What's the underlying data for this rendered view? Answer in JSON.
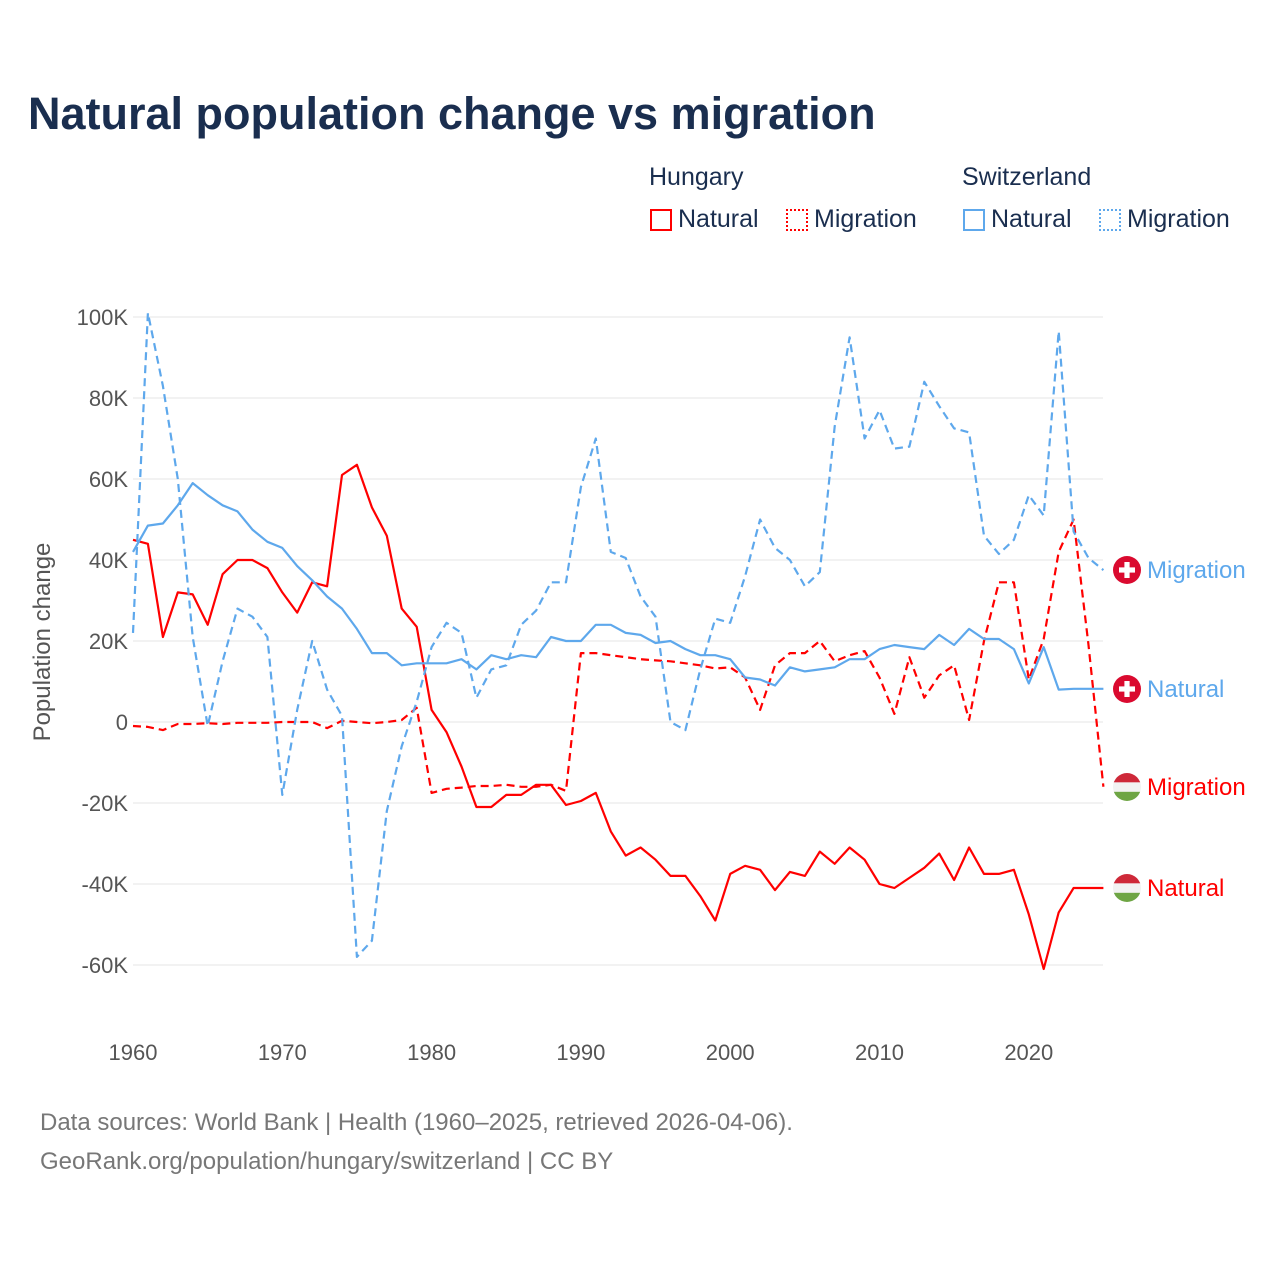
{
  "chart_data": {
    "type": "line",
    "title": "Natural population change vs migration",
    "xlabel": "",
    "ylabel": "Population change",
    "xlim": [
      1960,
      2025
    ],
    "ylim": [
      -70000,
      105000
    ],
    "x_ticks": [
      1960,
      1970,
      1980,
      1990,
      2000,
      2010,
      2020
    ],
    "x_tick_labels": [
      "1960",
      "1970",
      "1980",
      "1990",
      "2000",
      "2010",
      "2020"
    ],
    "y_ticks": [
      100000,
      80000,
      60000,
      40000,
      20000,
      0,
      -20000,
      -40000,
      -60000
    ],
    "y_tick_labels": [
      "100K",
      "80K",
      "60K",
      "40K",
      "20K",
      "0",
      "-20K",
      "-40K",
      "-60K"
    ],
    "grid": true,
    "legend_placement": "top-right",
    "legend_groups": [
      "Hungary",
      "Switzerland"
    ],
    "x_start": 1960,
    "series": [
      {
        "name": "Hungary Natural",
        "country": "Hungary",
        "label": "Natural",
        "color": "#ff0000",
        "dashed": false,
        "flag": "hungary-flag-icon",
        "values_k": [
          45,
          44,
          21,
          32,
          31.5,
          24,
          36.5,
          40,
          40,
          38,
          32,
          27,
          34.5,
          33.5,
          61,
          63.5,
          53,
          46,
          28,
          23.5,
          3,
          -2.5,
          -11,
          -21,
          -21,
          -18,
          -18,
          -15.5,
          -15.5,
          -20.5,
          -19.5,
          -17.5,
          -27,
          -33,
          -31,
          -34,
          -38,
          -38,
          -43,
          -49,
          -37.5,
          -35.5,
          -36.5,
          -41.5,
          -37,
          -38,
          -32,
          -35,
          -31,
          -34,
          -40,
          -41,
          -38.5,
          -36,
          -32.5,
          -39,
          -31,
          -37.5,
          -37.5,
          -36.5,
          -47.5,
          -61,
          -47,
          -41,
          -41,
          -41
        ]
      },
      {
        "name": "Hungary Migration",
        "country": "Hungary",
        "label": "Migration",
        "color": "#ff0000",
        "dashed": true,
        "flag": "hungary-flag-icon",
        "values_k": [
          -1,
          -1.2,
          -2,
          -0.5,
          -0.5,
          -0.3,
          -0.5,
          -0.2,
          -0.2,
          -0.2,
          0,
          0,
          0,
          -1.5,
          0.3,
          0,
          -0.3,
          0,
          0.5,
          3.5,
          -17.5,
          -16.5,
          -16.2,
          -15.8,
          -15.8,
          -15.5,
          -16,
          -16,
          -15.5,
          -17,
          17,
          17,
          16.5,
          16,
          15.5,
          15.2,
          15,
          14.5,
          14,
          13.2,
          13.5,
          11,
          3,
          14,
          17,
          17,
          20,
          15,
          16.5,
          17.5,
          11,
          2,
          16,
          6,
          11.5,
          14,
          0.5,
          20,
          34.5,
          34.5,
          10.5,
          20.5,
          42,
          50,
          19,
          -16
        ]
      },
      {
        "name": "Switzerland Natural",
        "country": "Switzerland",
        "label": "Natural",
        "color": "#5ea8ec",
        "dashed": false,
        "flag": "switzerland-flag-icon",
        "values_k": [
          42,
          48.5,
          49,
          53.5,
          59,
          56,
          53.5,
          52,
          47.5,
          44.5,
          43,
          38.5,
          35,
          31,
          28,
          23,
          17,
          17,
          14,
          14.5,
          14.5,
          14.5,
          15.5,
          13,
          16.5,
          15.5,
          16.5,
          16,
          21,
          20,
          20,
          24,
          24,
          22,
          21.5,
          19.5,
          20,
          18,
          16.5,
          16.5,
          15.5,
          11,
          10.5,
          9,
          13.5,
          12.5,
          13,
          13.5,
          15.5,
          15.5,
          18,
          19,
          18.5,
          18,
          21.5,
          19,
          23,
          20.5,
          20.5,
          18,
          9.5,
          18.5,
          8,
          8.2,
          8.2,
          8.2
        ]
      },
      {
        "name": "Switzerland Migration",
        "country": "Switzerland",
        "label": "Migration",
        "color": "#5ea8ec",
        "dashed": true,
        "flag": "switzerland-flag-icon",
        "values_k": [
          22,
          101,
          83,
          60,
          21,
          -1,
          15,
          28,
          26,
          21,
          -18,
          3,
          20,
          8,
          1.5,
          -58,
          -54,
          -22,
          -6,
          5,
          18.5,
          24.5,
          22,
          6,
          13,
          14,
          24,
          27.5,
          34.5,
          34.5,
          58,
          70,
          42,
          40.5,
          31,
          26,
          0,
          -2,
          13,
          25.5,
          24.5,
          36,
          50,
          43,
          40,
          33.5,
          37,
          73,
          95,
          70,
          77,
          67.5,
          68,
          84,
          78,
          72.5,
          71.5,
          46,
          41.5,
          45,
          56,
          51,
          96.5,
          47,
          40.5,
          37.5
        ]
      }
    ]
  },
  "legend": {
    "hungary": "Hungary",
    "switzerland": "Switzerland",
    "natural": "Natural",
    "migration": "Migration"
  },
  "footer": {
    "line1": "Data sources: World Bank | Health (1960–2025, retrieved 2026-04-06).",
    "line2": "GeoRank.org/population/hungary/switzerland | CC BY"
  }
}
